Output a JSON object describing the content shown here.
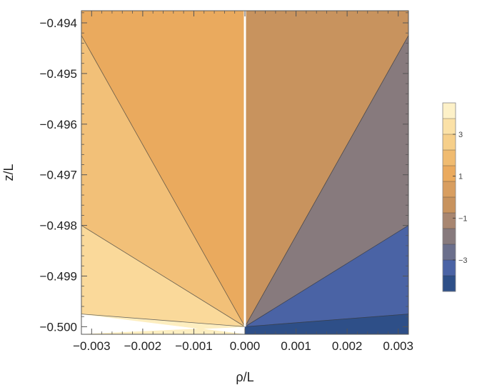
{
  "chart_data": {
    "type": "contour",
    "xlabel": "ρ/L",
    "ylabel": "z/L",
    "xlim": [
      -0.0032,
      0.0032
    ],
    "ylim": [
      -0.50015,
      -0.49376
    ],
    "x_ticks": [
      {
        "value": -0.003,
        "label": "−0.003"
      },
      {
        "value": -0.002,
        "label": "−0.002"
      },
      {
        "value": -0.001,
        "label": "−0.001"
      },
      {
        "value": 0.0,
        "label": "0.000"
      },
      {
        "value": 0.001,
        "label": "0.001"
      },
      {
        "value": 0.002,
        "label": "0.002"
      },
      {
        "value": 0.003,
        "label": "0.003"
      }
    ],
    "y_ticks": [
      {
        "value": -0.494,
        "label": "−0.494"
      },
      {
        "value": -0.495,
        "label": "−0.495"
      },
      {
        "value": -0.496,
        "label": "−0.496"
      },
      {
        "value": -0.497,
        "label": "−0.497"
      },
      {
        "value": -0.498,
        "label": "−0.498"
      },
      {
        "value": -0.499,
        "label": "−0.499"
      },
      {
        "value": -0.5,
        "label": "−0.500"
      }
    ],
    "apex": [
      0.0,
      -0.5
    ],
    "regions": [
      {
        "name": "left-top",
        "color": "#eaaa5e",
        "points": [
          [
            -0.0032,
            -0.49376
          ],
          [
            0.0,
            -0.49376
          ],
          [
            0.0,
            -0.5
          ],
          [
            -0.0032,
            -0.49425
          ]
        ]
      },
      {
        "name": "left-mid",
        "color": "#f2c078",
        "points": [
          [
            -0.0032,
            -0.49425
          ],
          [
            0.0,
            -0.5
          ],
          [
            -0.0032,
            -0.498
          ]
        ]
      },
      {
        "name": "left-low",
        "color": "#fad99a",
        "points": [
          [
            -0.0032,
            -0.498
          ],
          [
            0.0,
            -0.5
          ],
          [
            -0.0032,
            -0.49975
          ]
        ]
      },
      {
        "name": "left-bottom",
        "color": "#fdeec0",
        "points": [
          [
            -0.0032,
            -0.49975
          ],
          [
            0.0,
            -0.5
          ],
          [
            -0.0032,
            -0.50015
          ],
          [
            0.0,
            -0.50015
          ]
        ]
      },
      {
        "name": "right-top",
        "color": "#c8935e",
        "points": [
          [
            0.0,
            -0.49376
          ],
          [
            0.0032,
            -0.49376
          ],
          [
            0.0032,
            -0.49425
          ],
          [
            0.0,
            -0.5
          ]
        ]
      },
      {
        "name": "right-mid",
        "color": "#877a7d",
        "points": [
          [
            0.0,
            -0.5
          ],
          [
            0.0032,
            -0.49425
          ],
          [
            0.0032,
            -0.498
          ]
        ]
      },
      {
        "name": "right-low",
        "color": "#4a63a5",
        "points": [
          [
            0.0,
            -0.5
          ],
          [
            0.0032,
            -0.498
          ],
          [
            0.0032,
            -0.49975
          ]
        ]
      },
      {
        "name": "right-bottom",
        "color": "#2e4f88",
        "points": [
          [
            0.0,
            -0.5
          ],
          [
            0.0032,
            -0.49975
          ],
          [
            0.0032,
            -0.50015
          ],
          [
            0.0,
            -0.50015
          ]
        ]
      }
    ],
    "contour_lines": [
      [
        [
          0.0,
          -0.5
        ],
        [
          -0.0032,
          -0.49425
        ]
      ],
      [
        [
          0.0,
          -0.5
        ],
        [
          -0.0032,
          -0.498
        ]
      ],
      [
        [
          0.0,
          -0.5
        ],
        [
          -0.0032,
          -0.49975
        ]
      ],
      [
        [
          0.0,
          -0.5
        ],
        [
          0.0032,
          -0.49425
        ]
      ],
      [
        [
          0.0,
          -0.5
        ],
        [
          0.0032,
          -0.498
        ]
      ],
      [
        [
          0.0,
          -0.5
        ],
        [
          0.0032,
          -0.49975
        ]
      ]
    ],
    "colorbar": {
      "range": [
        -4.5,
        4.5
      ],
      "bands": [
        "#fdf1c8",
        "#fbe1a7",
        "#f6cf8a",
        "#f0bb70",
        "#eaaa5e",
        "#d89e60",
        "#c8935e",
        "#a88670",
        "#877a7d",
        "#6b6f8c",
        "#4a63a5",
        "#2e4f88"
      ],
      "ticks": [
        {
          "value": 3,
          "label": "3"
        },
        {
          "value": 1,
          "label": "1"
        },
        {
          "value": -1,
          "label": "−1"
        },
        {
          "value": -3,
          "label": "−3"
        }
      ]
    }
  }
}
